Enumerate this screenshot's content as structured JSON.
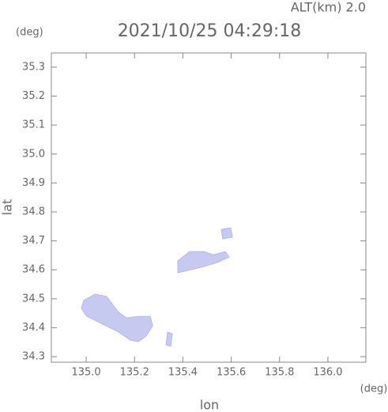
{
  "chart_data": {
    "type": "region-map",
    "title": "2021/10/25 04:29:18",
    "annotation": "ALT(km) 2.0",
    "xlabel": "lon",
    "xlabel_unit": "(deg)",
    "ylabel": "lat",
    "ylabel_unit": "(deg)",
    "xlim": [
      134.856,
      136.157
    ],
    "ylim": [
      34.281,
      35.349
    ],
    "xticks": [
      {
        "value": 135,
        "label": "135.0"
      },
      135.2,
      135.4,
      135.6,
      135.8,
      {
        "value": 136,
        "label": "136.0"
      }
    ],
    "yticks": [
      34.3,
      34.4,
      34.5,
      34.6,
      34.7,
      34.8,
      34.9,
      {
        "value": 35,
        "label": "35.0"
      },
      35.1,
      35.2,
      35.3
    ],
    "color": "#c6caf0",
    "regions": [
      {
        "lon": [
          134.99,
          135.036,
          135.085,
          135.134,
          135.167,
          135.216,
          135.265,
          135.275,
          135.248,
          135.216,
          135.183,
          135.134,
          135.069,
          135.003,
          134.98
        ],
        "lat": [
          34.494,
          34.516,
          34.508,
          34.453,
          34.434,
          34.439,
          34.439,
          34.407,
          34.371,
          34.352,
          34.357,
          34.385,
          34.412,
          34.439,
          34.467
        ]
      },
      {
        "lon": [
          135.379,
          135.428,
          135.487,
          135.526,
          135.575,
          135.592,
          135.542,
          135.477,
          135.422,
          135.379
        ],
        "lat": [
          34.631,
          34.663,
          34.663,
          34.652,
          34.663,
          34.644,
          34.625,
          34.609,
          34.598,
          34.59
        ]
      },
      {
        "lon": [
          135.559,
          135.598,
          135.605,
          135.565
        ],
        "lat": [
          34.74,
          34.745,
          34.713,
          34.707
        ]
      },
      {
        "lon": [
          135.337,
          135.356,
          135.35,
          135.33
        ],
        "lat": [
          34.385,
          34.379,
          34.336,
          34.341
        ]
      }
    ]
  }
}
